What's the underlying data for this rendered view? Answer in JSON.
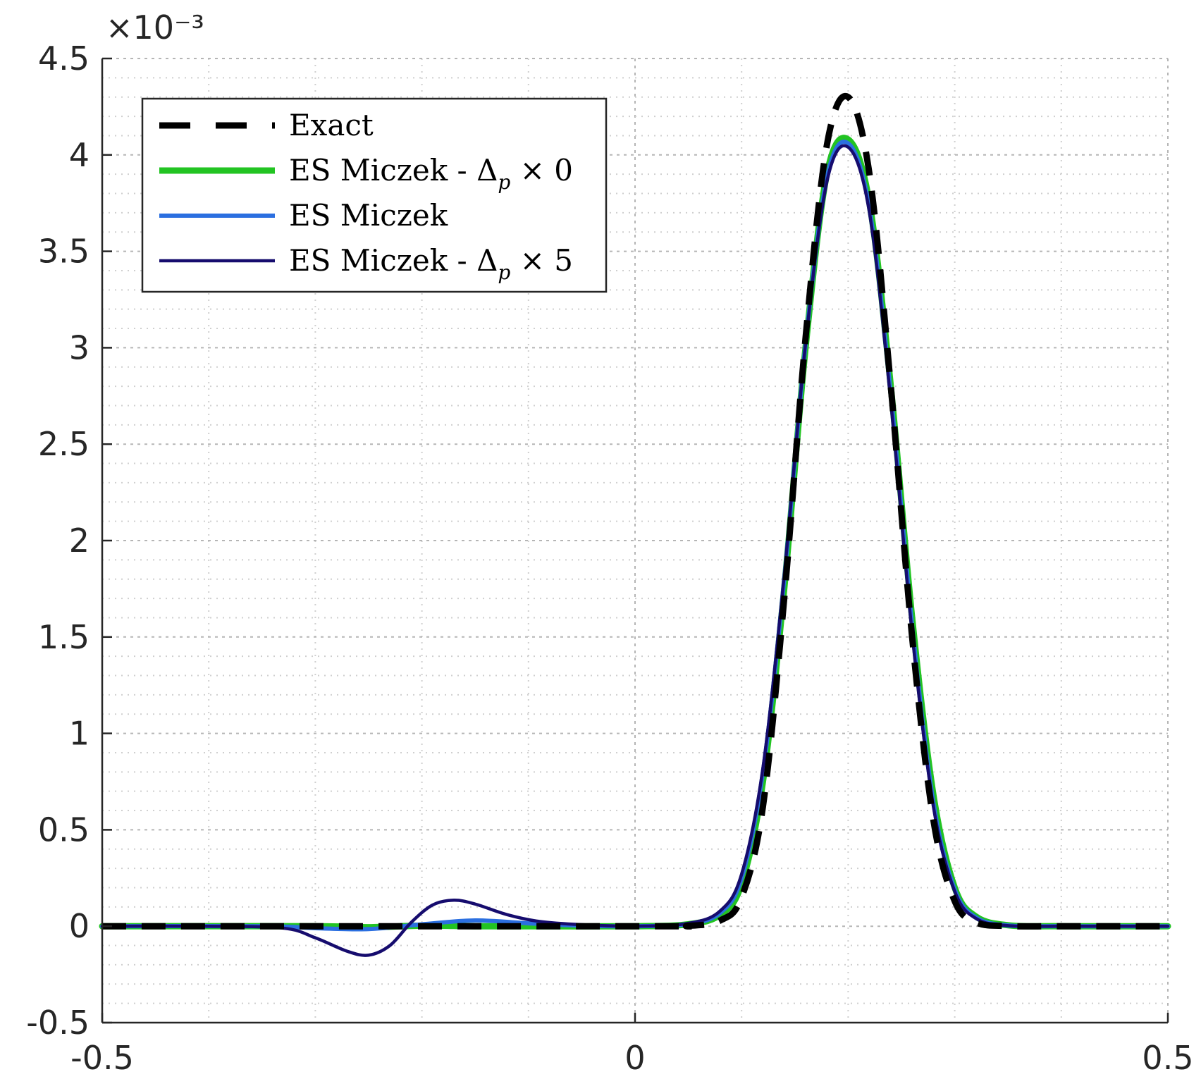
{
  "chart_data": {
    "type": "line",
    "title": "",
    "xlabel": "",
    "ylabel": "",
    "xlim": [
      -0.5,
      0.5
    ],
    "ylim": [
      -0.5,
      4.5
    ],
    "y_exponent_label": "×10⁻³",
    "x_ticks": [
      -0.5,
      0,
      0.5
    ],
    "x_tick_labels": [
      "-0.5",
      "0",
      "0.5"
    ],
    "y_ticks": [
      -0.5,
      0,
      0.5,
      1,
      1.5,
      2,
      2.5,
      3,
      3.5,
      4,
      4.5
    ],
    "y_tick_labels": [
      "-0.5",
      "0",
      "0.5",
      "1",
      "1.5",
      "2",
      "2.5",
      "3",
      "3.5",
      "4",
      "4.5"
    ],
    "grid": "dotted major and minor",
    "legend_position": "top-left",
    "legend": [
      {
        "text": "Exact",
        "suffix": ""
      },
      {
        "text": "ES Miczek - Δ",
        "sub": "p",
        "suffix": " × 0"
      },
      {
        "text": "ES Miczek",
        "sub": "",
        "suffix": ""
      },
      {
        "text": "ES Miczek - Δ",
        "sub": "p",
        "suffix": " × 5"
      }
    ],
    "series": [
      {
        "name": "Exact",
        "color": "#000000",
        "dash": "dashed",
        "width": 9,
        "x": [
          -0.5,
          0.0,
          0.05,
          0.08,
          0.1,
          0.12,
          0.14,
          0.16,
          0.18,
          0.2,
          0.22,
          0.24,
          0.26,
          0.28,
          0.3,
          0.32,
          0.35,
          0.4,
          0.5
        ],
        "y": [
          0,
          0,
          0.002,
          0.03,
          0.15,
          0.62,
          1.7,
          3.05,
          4.05,
          4.3,
          3.9,
          2.8,
          1.5,
          0.55,
          0.13,
          0.02,
          0.001,
          0,
          0
        ]
      },
      {
        "name": "ES Miczek - Δp × 0",
        "color": "#22c422",
        "dash": "solid",
        "width": 9,
        "x": [
          -0.5,
          -0.3,
          -0.25,
          -0.2,
          -0.15,
          -0.1,
          0.0,
          0.05,
          0.08,
          0.1,
          0.12,
          0.14,
          0.16,
          0.18,
          0.2,
          0.22,
          0.24,
          0.26,
          0.28,
          0.3,
          0.32,
          0.35,
          0.4,
          0.5
        ],
        "y": [
          0,
          0,
          -0.005,
          0.003,
          0.0,
          0.0,
          0,
          0.01,
          0.06,
          0.22,
          0.75,
          1.75,
          3.0,
          3.9,
          4.08,
          3.75,
          2.8,
          1.6,
          0.68,
          0.2,
          0.05,
          0.005,
          0,
          0
        ]
      },
      {
        "name": "ES Miczek",
        "color": "#2b6fe0",
        "dash": "solid",
        "width": 6,
        "x": [
          -0.5,
          -0.35,
          -0.3,
          -0.25,
          -0.2,
          -0.15,
          -0.1,
          -0.05,
          0.0,
          0.05,
          0.08,
          0.1,
          0.12,
          0.14,
          0.16,
          0.18,
          0.2,
          0.22,
          0.24,
          0.26,
          0.28,
          0.3,
          0.32,
          0.35,
          0.4,
          0.5
        ],
        "y": [
          0,
          0,
          -0.01,
          -0.015,
          0.01,
          0.03,
          0.015,
          0.003,
          0,
          0.012,
          0.07,
          0.25,
          0.8,
          1.8,
          3.02,
          3.88,
          4.06,
          3.72,
          2.76,
          1.56,
          0.64,
          0.19,
          0.045,
          0.004,
          0,
          0
        ]
      },
      {
        "name": "ES Miczek - Δp × 5",
        "color": "#160c6e",
        "dash": "solid",
        "width": 4.5,
        "x": [
          -0.5,
          -0.4,
          -0.33,
          -0.3,
          -0.27,
          -0.25,
          -0.23,
          -0.21,
          -0.19,
          -0.17,
          -0.15,
          -0.12,
          -0.09,
          -0.05,
          0.0,
          0.05,
          0.08,
          0.1,
          0.12,
          0.14,
          0.16,
          0.18,
          0.2,
          0.22,
          0.24,
          0.26,
          0.28,
          0.3,
          0.32,
          0.35,
          0.4,
          0.5
        ],
        "y": [
          0,
          0,
          -0.01,
          -0.06,
          -0.13,
          -0.15,
          -0.1,
          0.02,
          0.11,
          0.135,
          0.115,
          0.06,
          0.025,
          0.008,
          0,
          0.015,
          0.08,
          0.27,
          0.82,
          1.82,
          3.02,
          3.86,
          4.04,
          3.7,
          2.72,
          1.52,
          0.62,
          0.18,
          0.04,
          0.003,
          0,
          0
        ]
      }
    ]
  }
}
